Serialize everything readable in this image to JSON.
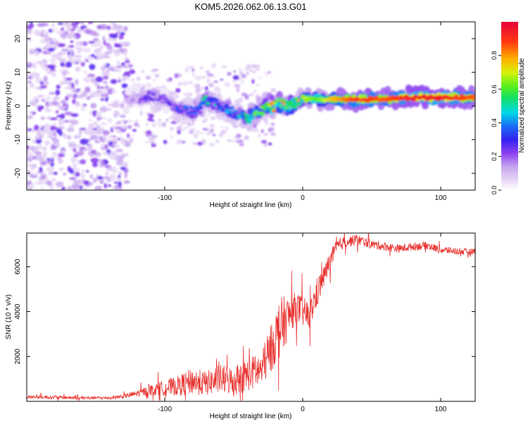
{
  "figure_title": "KOM5.2026.062.06.13.G01",
  "chart_data": [
    {
      "type": "heatmap",
      "title": "KOM5.2026.062.06.13.G01",
      "xlabel": "Height of straight line (km)",
      "ylabel": "Frequency (Hz)",
      "xlim": [
        -200,
        125
      ],
      "ylim": [
        -25,
        25
      ],
      "xticks": [
        -100,
        0,
        100
      ],
      "xtick_labels": [
        "-100",
        "0",
        "100"
      ],
      "yticks": [
        -20,
        -10,
        0,
        10,
        20
      ],
      "ytick_labels": [
        "-20",
        "-10",
        "0",
        "10",
        "20"
      ],
      "grid": false,
      "colorbar": {
        "label": "Normalized spectral amplitude",
        "range": [
          0,
          1
        ],
        "ticks": [
          0.0,
          0.2,
          0.4,
          0.6,
          0.8
        ],
        "tick_labels": [
          "0.0",
          "0.2",
          "0.4",
          "0.6",
          "0.8"
        ]
      },
      "ridge": {
        "description_free": true,
        "x": [
          -120,
          -110,
          -100,
          -90,
          -80,
          -70,
          -60,
          -50,
          -45,
          -40,
          -35,
          -30,
          -25,
          -20,
          -15,
          -10,
          -5,
          0,
          10,
          20,
          40,
          60,
          80,
          100,
          125
        ],
        "frequency": [
          2,
          3,
          2,
          -1,
          -2,
          2,
          0,
          -2,
          -3,
          -3.5,
          -2,
          -1,
          0,
          0,
          1,
          0,
          1,
          2,
          2,
          2,
          2,
          2,
          2.5,
          2.5,
          2.5
        ],
        "amplitude": [
          0.15,
          0.3,
          0.2,
          0.3,
          0.3,
          0.45,
          0.35,
          0.35,
          0.4,
          0.45,
          0.5,
          0.55,
          0.6,
          0.7,
          0.75,
          0.65,
          0.6,
          0.7,
          0.6,
          0.75,
          0.9,
          0.85,
          0.95,
          0.95,
          0.85
        ]
      },
      "noise_region_x": [
        -200,
        -127
      ]
    },
    {
      "type": "line",
      "title": "",
      "xlabel": "Height of straight line (km)",
      "ylabel": "SNR (10 * v/v)",
      "xlim": [
        -200,
        125
      ],
      "ylim": [
        0,
        7500
      ],
      "xticks": [
        -100,
        0,
        100
      ],
      "xtick_labels": [
        "-100",
        "0",
        "100"
      ],
      "yticks": [
        2000,
        4000,
        6000
      ],
      "ytick_labels": [
        "2000",
        "4000",
        "6000"
      ],
      "grid": false,
      "series": [
        {
          "name": "SNR",
          "color": "#e8312e",
          "x": [
            -200,
            -180,
            -160,
            -140,
            -130,
            -120,
            -110,
            -100,
            -90,
            -80,
            -70,
            -60,
            -50,
            -40,
            -30,
            -25,
            -20,
            -15,
            -10,
            -5,
            0,
            5,
            10,
            15,
            20,
            25,
            30,
            35,
            40,
            50,
            60,
            70,
            80,
            90,
            100,
            110,
            120,
            125
          ],
          "values": [
            200,
            180,
            150,
            160,
            220,
            350,
            500,
            600,
            700,
            900,
            800,
            1000,
            900,
            1200,
            1400,
            2000,
            2800,
            3400,
            3800,
            4200,
            4000,
            3800,
            4800,
            5500,
            6300,
            6900,
            7100,
            7150,
            7200,
            7000,
            6900,
            6800,
            6900,
            6950,
            6750,
            6700,
            6650,
            6700
          ],
          "noise": [
            80,
            80,
            70,
            70,
            90,
            150,
            250,
            350,
            450,
            600,
            550,
            650,
            650,
            750,
            800,
            900,
            1200,
            1300,
            900,
            700,
            700,
            600,
            700,
            500,
            400,
            350,
            250,
            250,
            250,
            200,
            200,
            180,
            180,
            180,
            170,
            150,
            150,
            150
          ]
        }
      ]
    }
  ]
}
